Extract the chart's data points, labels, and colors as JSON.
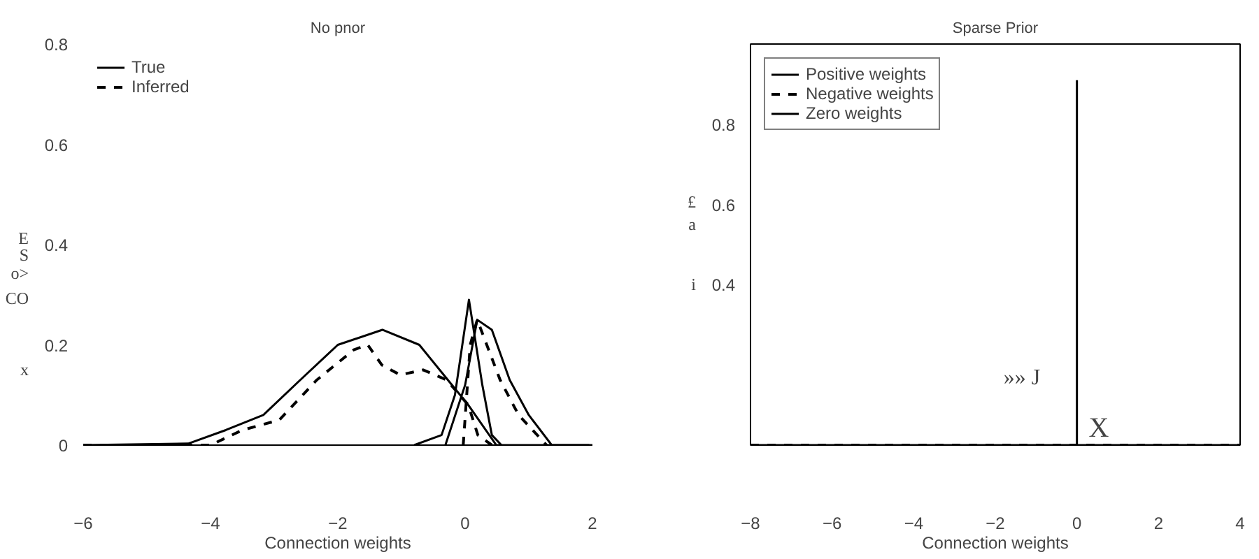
{
  "chart_data": [
    {
      "type": "line",
      "title": "No pnor",
      "xlabel": "Connection weights",
      "xlim": [
        -6,
        2
      ],
      "xticks": [
        -6,
        -4,
        -2,
        0,
        2
      ],
      "ylim": [
        0,
        0.8
      ],
      "yticks": [
        0,
        0.2,
        0.4,
        0.6,
        0.8
      ],
      "legend": "top left",
      "grid": false,
      "annotations": [
        "E",
        "S",
        "o>",
        "CO",
        "x"
      ],
      "series": [
        {
          "name": "True",
          "color": "#000000",
          "line_style": "solid",
          "x": [
            -6,
            -4.35,
            -3.76,
            -3.17,
            -2.59,
            -2.0,
            -1.3,
            -0.72,
            -0.24,
            0.05,
            0.49,
            2
          ],
          "values": [
            0,
            0.003,
            0.03,
            0.06,
            0.13,
            0.2,
            0.23,
            0.2,
            0.125,
            0.08,
            0,
            0
          ]
        },
        {
          "name": "Inferred",
          "color": "#000000",
          "line_style": "dashed",
          "x": [
            -6,
            -4.0,
            -3.5,
            -2.92,
            -2.33,
            -1.75,
            -1.53,
            -1.31,
            -1.02,
            -0.66,
            -0.29,
            0.05,
            0.2,
            0.42
          ],
          "values": [
            0,
            0,
            0.03,
            0.05,
            0.13,
            0.19,
            0.2,
            0.16,
            0.14,
            0.15,
            0.13,
            0.08,
            0.02,
            0
          ]
        },
        {
          "color": "#000000",
          "line_style": "solid",
          "x": [
            -0.8,
            -0.37,
            -0.16,
            0.06,
            0.27,
            0.42,
            0.57
          ],
          "values": [
            0,
            0.02,
            0.1,
            0.29,
            0.12,
            0.02,
            0
          ]
        },
        {
          "color": "#000000",
          "line_style": "solid",
          "x": [
            -0.31,
            0.0,
            0.19,
            0.42,
            0.7,
            1.0,
            1.36,
            1.95
          ],
          "values": [
            0,
            0.12,
            0.25,
            0.23,
            0.13,
            0.06,
            0,
            0
          ]
        },
        {
          "color": "#000000",
          "line_style": "dashed",
          "x": [
            -0.03,
            0.08,
            0.19,
            0.55,
            0.84,
            1.28
          ],
          "values": [
            0,
            0.2,
            0.25,
            0.13,
            0.06,
            0
          ]
        }
      ]
    },
    {
      "type": "line",
      "title": "Sparse Prior",
      "xlabel": "Connection weights",
      "xlim": [
        -8,
        4
      ],
      "xticks": [
        -8,
        -6,
        -4,
        -2,
        0,
        2,
        4
      ],
      "ylim": [
        0,
        1.0
      ],
      "yticks": [
        0.4,
        0.6,
        0.8
      ],
      "legend": "top left",
      "grid": false,
      "annotations": [
        "£",
        "a",
        "i",
        "»» J",
        "X"
      ],
      "series": [
        {
          "name": "Positive weights",
          "color": "#000000",
          "line_style": "solid",
          "x": [
            -8,
            4
          ],
          "values": [
            0,
            0
          ]
        },
        {
          "name": "Negative weights",
          "color": "#000000",
          "line_style": "dashed",
          "x": [
            -8,
            4
          ],
          "values": [
            0,
            0
          ]
        },
        {
          "name": "Zero weights",
          "color": "#000000",
          "line_style": "solid",
          "x": [
            0,
            0
          ],
          "values": [
            0,
            0.91
          ]
        }
      ]
    }
  ]
}
